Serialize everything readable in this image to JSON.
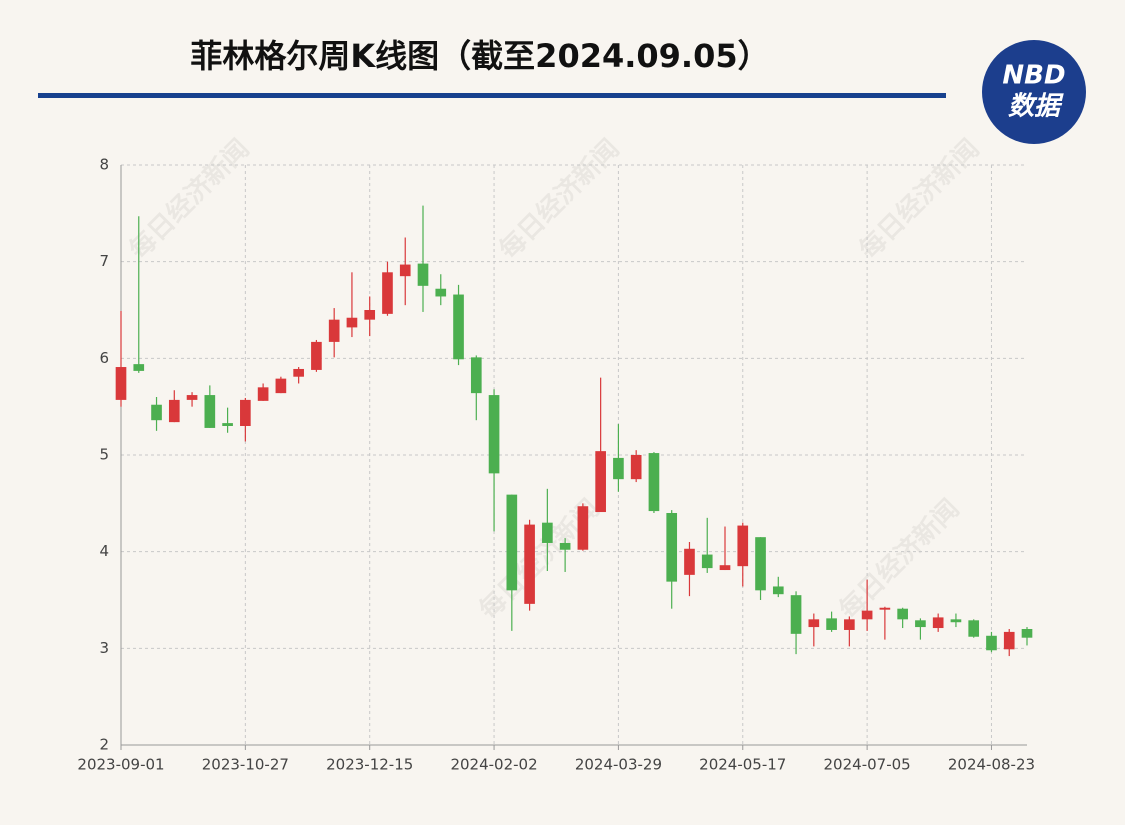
{
  "chart_data": {
    "type": "candlestick",
    "title": "菲林格尔周K线图（截至2024.09.05）",
    "categories": [
      "2023-09-01",
      null,
      null,
      null,
      null,
      null,
      null,
      "2023-10-27",
      null,
      null,
      null,
      null,
      null,
      null,
      "2023-12-15",
      null,
      null,
      null,
      null,
      null,
      null,
      "2024-02-02",
      null,
      null,
      null,
      null,
      null,
      null,
      "2024-03-29",
      null,
      null,
      null,
      null,
      null,
      null,
      "2024-05-17",
      null,
      null,
      null,
      null,
      null,
      null,
      "2024-07-05",
      null,
      null,
      null,
      null,
      null,
      null,
      "2024-08-23",
      null,
      null
    ],
    "series": [
      {
        "up_color": "#d9383a",
        "down_color": "#4caf50",
        "open": [
          5.57,
          5.94,
          5.52,
          5.34,
          5.57,
          5.62,
          5.33,
          5.3,
          5.56,
          5.64,
          5.81,
          5.88,
          6.17,
          6.32,
          6.4,
          6.46,
          6.85,
          6.98,
          6.72,
          6.66,
          6.01,
          5.62,
          4.59,
          3.46,
          4.3,
          4.09,
          4.02,
          4.41,
          4.97,
          4.75,
          5.02,
          4.4,
          3.76,
          3.97,
          3.81,
          3.85,
          4.15,
          3.64,
          3.55,
          3.22,
          3.31,
          3.19,
          3.3,
          3.4,
          3.41,
          3.29,
          3.21,
          3.3,
          3.29,
          3.13,
          2.99,
          3.2
        ],
        "high": [
          6.49,
          7.47,
          5.6,
          5.67,
          5.65,
          5.72,
          5.49,
          5.59,
          5.74,
          5.81,
          5.91,
          6.19,
          6.52,
          6.89,
          6.64,
          7.0,
          7.25,
          7.58,
          6.87,
          6.76,
          6.03,
          5.68,
          4.59,
          4.33,
          4.65,
          4.14,
          4.5,
          5.8,
          5.32,
          5.05,
          5.03,
          4.43,
          4.1,
          4.35,
          4.26,
          4.3,
          4.15,
          3.74,
          3.59,
          3.36,
          3.38,
          3.33,
          3.71,
          3.43,
          3.42,
          3.31,
          3.36,
          3.36,
          3.3,
          3.17,
          3.2,
          3.22
        ],
        "low": [
          5.5,
          5.85,
          5.25,
          5.34,
          5.5,
          5.28,
          5.23,
          5.14,
          5.56,
          5.64,
          5.74,
          5.86,
          6.01,
          6.22,
          6.23,
          6.44,
          6.55,
          6.48,
          6.55,
          5.93,
          5.36,
          4.21,
          3.18,
          3.39,
          3.8,
          3.79,
          4.01,
          4.41,
          4.62,
          4.72,
          4.4,
          3.41,
          3.54,
          3.78,
          3.81,
          3.64,
          3.5,
          3.53,
          2.94,
          3.02,
          3.17,
          3.02,
          3.18,
          3.09,
          3.21,
          3.09,
          3.17,
          3.22,
          3.11,
          2.96,
          2.92,
          3.03
        ],
        "close": [
          5.91,
          5.87,
          5.36,
          5.57,
          5.62,
          5.28,
          5.3,
          5.57,
          5.7,
          5.79,
          5.89,
          6.17,
          6.4,
          6.42,
          6.5,
          6.89,
          6.97,
          6.75,
          6.64,
          5.99,
          5.64,
          4.81,
          3.6,
          4.28,
          4.09,
          4.02,
          4.47,
          5.04,
          4.75,
          5.0,
          4.42,
          3.69,
          4.03,
          3.83,
          3.86,
          4.27,
          3.6,
          3.56,
          3.15,
          3.3,
          3.19,
          3.3,
          3.39,
          3.42,
          3.3,
          3.22,
          3.32,
          3.27,
          3.12,
          2.98,
          3.17,
          3.11
        ]
      }
    ],
    "ylim": [
      2,
      8
    ],
    "yticks": [
      2,
      3,
      4,
      5,
      6,
      7,
      8
    ],
    "grid": true
  },
  "logo": {
    "line1": "NBD",
    "line2": "数据"
  },
  "watermark": "每日经济新闻"
}
